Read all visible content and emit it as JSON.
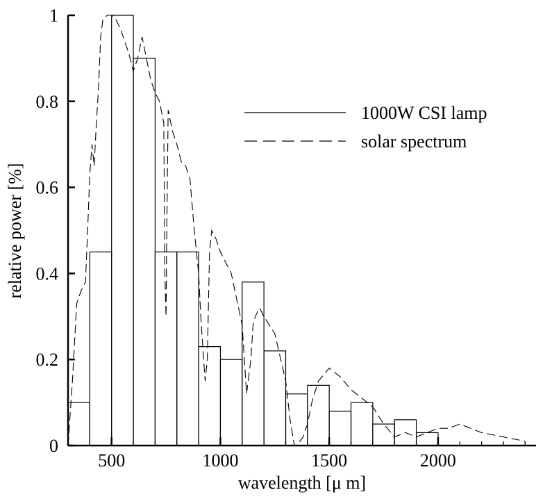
{
  "chart_data": {
    "type": "bar",
    "title": "",
    "xlabel": "wavelength [μ m]",
    "ylabel": "relative power [%]",
    "xlim": [
      300,
      2450
    ],
    "ylim": [
      0,
      1
    ],
    "xticks": [
      500,
      1000,
      1500,
      2000
    ],
    "xtick_labels": [
      "500",
      "1000",
      "1500",
      "2000"
    ],
    "yticks": [
      0,
      0.2,
      0.4,
      0.6,
      0.8,
      1
    ],
    "ytick_labels": [
      "0",
      "0.2",
      "0.4",
      "0.6",
      "0.8",
      "1"
    ],
    "grid": false,
    "legend": {
      "placement": "top-right",
      "entries": [
        "1000W CSI lamp",
        "solar spectrum"
      ]
    },
    "series": [
      {
        "name": "1000W CSI lamp",
        "style": "solid",
        "kind": "histogram",
        "bins": [
          {
            "x0": 300,
            "x1": 400,
            "value": 0.1
          },
          {
            "x0": 400,
            "x1": 500,
            "value": 0.45
          },
          {
            "x0": 500,
            "x1": 600,
            "value": 1.0
          },
          {
            "x0": 600,
            "x1": 700,
            "value": 0.9
          },
          {
            "x0": 700,
            "x1": 800,
            "value": 0.45
          },
          {
            "x0": 800,
            "x1": 900,
            "value": 0.45
          },
          {
            "x0": 900,
            "x1": 1000,
            "value": 0.23
          },
          {
            "x0": 1000,
            "x1": 1100,
            "value": 0.2
          },
          {
            "x0": 1100,
            "x1": 1200,
            "value": 0.38
          },
          {
            "x0": 1200,
            "x1": 1300,
            "value": 0.22
          },
          {
            "x0": 1300,
            "x1": 1400,
            "value": 0.12
          },
          {
            "x0": 1400,
            "x1": 1500,
            "value": 0.14
          },
          {
            "x0": 1500,
            "x1": 1600,
            "value": 0.08
          },
          {
            "x0": 1600,
            "x1": 1700,
            "value": 0.1
          },
          {
            "x0": 1700,
            "x1": 1800,
            "value": 0.05
          },
          {
            "x0": 1800,
            "x1": 1900,
            "value": 0.06
          },
          {
            "x0": 1900,
            "x1": 2000,
            "value": 0.03
          }
        ]
      },
      {
        "name": "solar spectrum",
        "style": "dashed",
        "kind": "line",
        "x": [
          300,
          320,
          340,
          360,
          380,
          390,
          400,
          410,
          420,
          430,
          440,
          450,
          460,
          480,
          500,
          520,
          540,
          560,
          580,
          600,
          620,
          640,
          660,
          680,
          700,
          720,
          740,
          745,
          750,
          755,
          760,
          780,
          800,
          820,
          840,
          860,
          880,
          900,
          910,
          920,
          930,
          940,
          950,
          960,
          980,
          1000,
          1050,
          1100,
          1120,
          1140,
          1150,
          1160,
          1180,
          1200,
          1250,
          1300,
          1320,
          1340,
          1350,
          1380,
          1400,
          1420,
          1450,
          1500,
          1550,
          1600,
          1700,
          1750,
          1800,
          1850,
          1900,
          1950,
          2000,
          2050,
          2100,
          2200,
          2300,
          2400
        ],
        "y": [
          0.0,
          0.15,
          0.33,
          0.36,
          0.38,
          0.5,
          0.63,
          0.7,
          0.65,
          0.75,
          0.83,
          0.95,
          0.99,
          1.0,
          1.0,
          0.99,
          0.97,
          0.94,
          0.91,
          0.87,
          0.9,
          0.95,
          0.9,
          0.85,
          0.82,
          0.8,
          0.75,
          0.4,
          0.3,
          0.55,
          0.78,
          0.73,
          0.7,
          0.66,
          0.65,
          0.62,
          0.5,
          0.4,
          0.3,
          0.22,
          0.15,
          0.2,
          0.45,
          0.5,
          0.48,
          0.45,
          0.4,
          0.28,
          0.12,
          0.2,
          0.28,
          0.3,
          0.32,
          0.3,
          0.26,
          0.15,
          0.06,
          0.0,
          0.0,
          0.02,
          0.05,
          0.1,
          0.15,
          0.18,
          0.16,
          0.13,
          0.09,
          0.05,
          0.02,
          0.03,
          0.02,
          0.03,
          0.04,
          0.04,
          0.05,
          0.03,
          0.02,
          0.01
        ]
      }
    ]
  }
}
